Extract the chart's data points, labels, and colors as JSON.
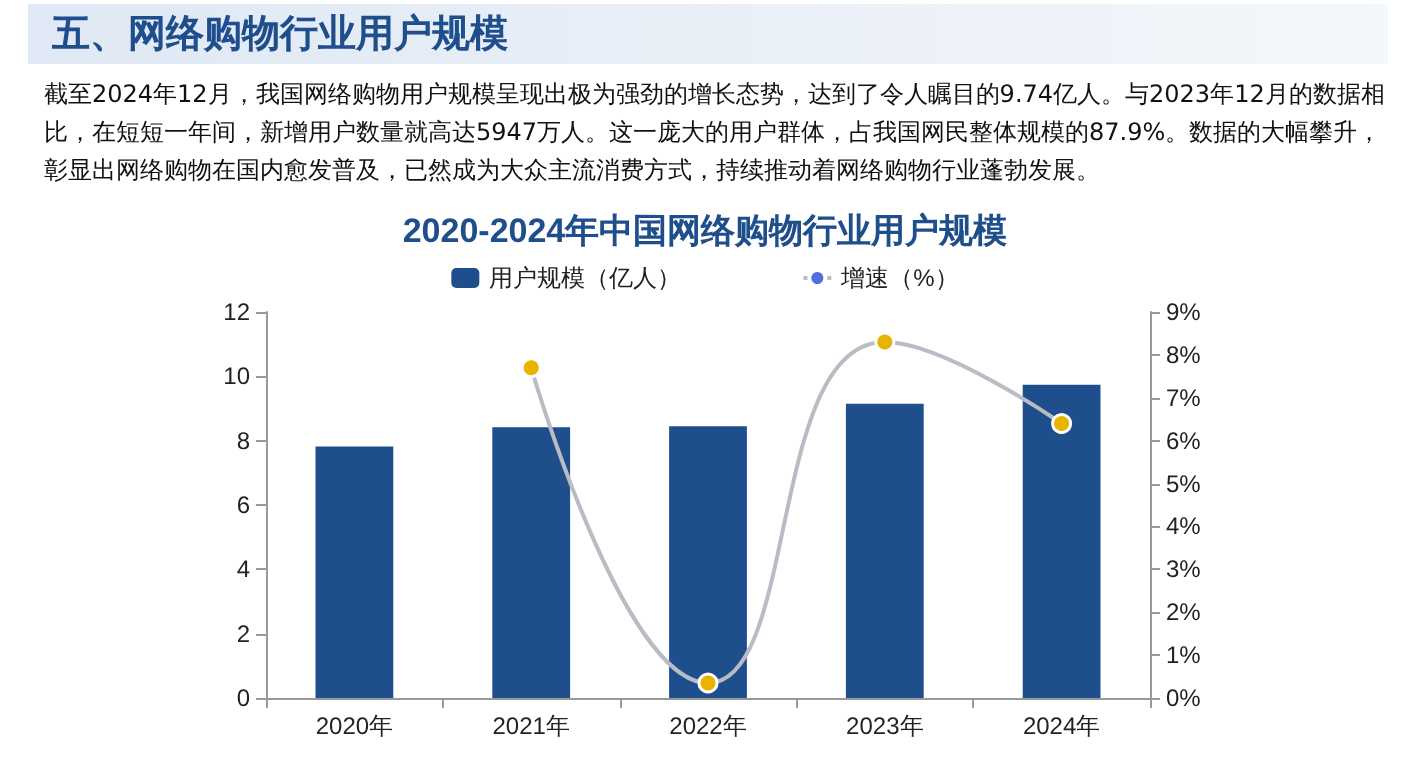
{
  "chart_data": {
    "type": "bar",
    "title": "2020-2024年中国网络购物行业用户规模",
    "annotations": [
      "五、网络购物行业用户规模",
      "截至2024年12月，我国网络购物用户规模呈现出极为强劲的增长态势，达到了令人瞩目的9.74亿人。与2023年12月的数据相比，在短短一年间，新增用户数量就高达5947万人。这一庞大的用户群体，占我国网民整体规模的87.9%。数据的大幅攀升，彰显出网络购物在国内愈发普及，已然成为大众主流消费方式，持续推动着网络购物行业蓬勃发展。"
    ],
    "categories": [
      "2020年",
      "2021年",
      "2022年",
      "2023年",
      "2024年"
    ],
    "series": [
      {
        "name": "用户规模（亿人）",
        "color": "#1f4e8c",
        "values": [
          7.82,
          8.42,
          8.45,
          9.15,
          9.74
        ]
      },
      {
        "name": "增速（%）",
        "type": "line",
        "axis": "y2",
        "color": "#b8bcc4",
        "colors": [
          null,
          "#e8b400",
          "#e8b400",
          "#e8b400",
          "#e8b400"
        ],
        "values": [
          null,
          7.7,
          0.35,
          8.3,
          6.4
        ]
      }
    ],
    "ylim": [
      0,
      12
    ],
    "yticks": [
      0,
      2,
      4,
      6,
      8,
      10,
      12
    ],
    "y2lim": [
      0,
      9
    ],
    "y2ticks": [
      {
        "value": 0,
        "label": "0%"
      },
      {
        "value": 1,
        "label": "1%"
      },
      {
        "value": 2,
        "label": "2%"
      },
      {
        "value": 3,
        "label": "3%"
      },
      {
        "value": 4,
        "label": "4%"
      },
      {
        "value": 5,
        "label": "5%"
      },
      {
        "value": 6,
        "label": "6%"
      },
      {
        "value": 7,
        "label": "7%"
      },
      {
        "value": 8,
        "label": "8%"
      },
      {
        "value": 9,
        "label": "9%"
      }
    ],
    "grid": false,
    "legend": "top",
    "marker": "circle",
    "line_style": "solid"
  }
}
